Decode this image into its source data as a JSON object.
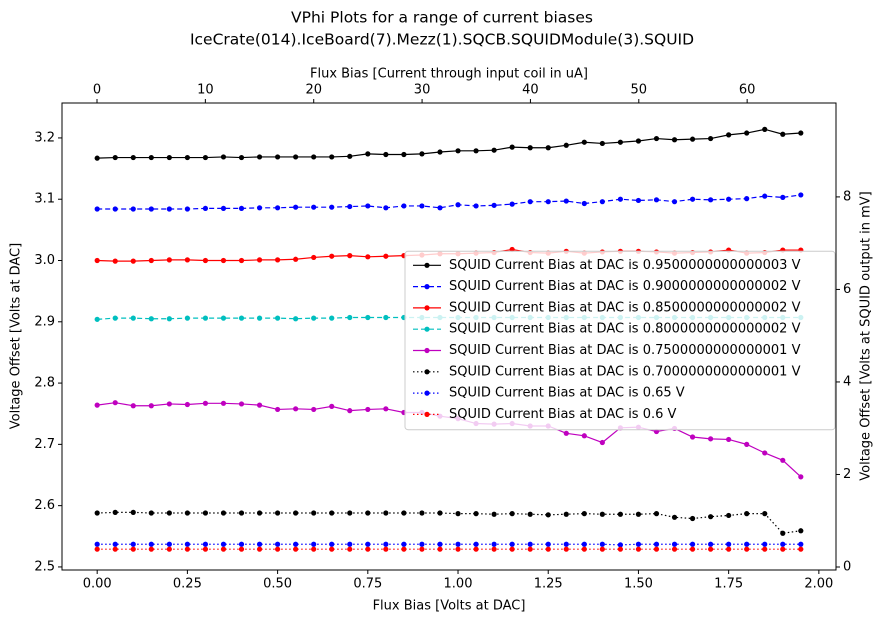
{
  "chart_data": {
    "type": "line",
    "title": "VPhi Plots for a range of current biases",
    "subtitle": "IceCrate(014).IceBoard(7).Mezz(1).SQCB.SQUIDModule(3).SQUID",
    "xlabel": "Flux Bias [Volts at DAC]",
    "ylabel": "Voltage Offset [Volts at DAC]",
    "x2label": "Flux Bias [Current through input coil in uA]",
    "y2label": "Voltage Offset [Volts at SQUID output in mV]",
    "x": [
      0,
      0.05,
      0.1,
      0.15,
      0.2,
      0.25,
      0.3,
      0.35,
      0.4,
      0.45,
      0.5,
      0.55,
      0.6,
      0.65,
      0.7,
      0.75,
      0.8,
      0.85,
      0.9,
      0.95,
      1.0,
      1.05,
      1.1,
      1.15,
      1.2,
      1.25,
      1.3,
      1.35,
      1.4,
      1.45,
      1.5,
      1.55,
      1.6,
      1.65,
      1.7,
      1.75,
      1.8,
      1.85,
      1.9,
      1.95
    ],
    "xlim": [
      -0.0975,
      2.0475
    ],
    "xticks": [
      {
        "value": 0,
        "label": "0.00"
      },
      {
        "value": 0.25,
        "label": "0.25"
      },
      {
        "value": 0.5,
        "label": "0.50"
      },
      {
        "value": 0.75,
        "label": "0.75"
      },
      {
        "value": 1,
        "label": "1.00"
      },
      {
        "value": 1.25,
        "label": "1.25"
      },
      {
        "value": 1.5,
        "label": "1.50"
      },
      {
        "value": 1.75,
        "label": "1.75"
      },
      {
        "value": 2,
        "label": "2.00"
      }
    ],
    "ylim": [
      2.495,
      3.257
    ],
    "yticks": [
      {
        "value": 2.5,
        "label": "2.5"
      },
      2.6,
      2.7,
      2.8,
      2.9,
      {
        "value": 3,
        "label": "3.0"
      },
      3.1,
      3.2
    ],
    "x2lim": [
      -3.23,
      68.2
    ],
    "x2ticks": [
      0,
      10,
      20,
      30,
      40,
      50,
      60
    ],
    "y2lim": [
      -0.065,
      10.03
    ],
    "y2ticks": [
      0,
      2,
      4,
      6,
      8
    ],
    "legend": "right",
    "series": [
      {
        "name": "SQUID Current Bias at DAC is 0.9500000000000003 V",
        "color": "#000000",
        "linestyle": "solid",
        "values": [
          3.167,
          3.168,
          3.168,
          3.168,
          3.168,
          3.168,
          3.168,
          3.169,
          3.168,
          3.169,
          3.169,
          3.169,
          3.169,
          3.169,
          3.17,
          3.174,
          3.173,
          3.173,
          3.174,
          3.177,
          3.179,
          3.179,
          3.18,
          3.185,
          3.184,
          3.184,
          3.188,
          3.193,
          3.191,
          3.193,
          3.195,
          3.199,
          3.197,
          3.198,
          3.199,
          3.205,
          3.208,
          3.214,
          3.206,
          3.208
        ]
      },
      {
        "name": "SQUID Current Bias at DAC is 0.9000000000000002 V",
        "color": "#0000ff",
        "linestyle": "dashed",
        "values": [
          3.084,
          3.084,
          3.084,
          3.084,
          3.084,
          3.084,
          3.085,
          3.085,
          3.085,
          3.086,
          3.086,
          3.087,
          3.087,
          3.087,
          3.088,
          3.089,
          3.086,
          3.089,
          3.089,
          3.086,
          3.091,
          3.089,
          3.09,
          3.092,
          3.096,
          3.096,
          3.097,
          3.093,
          3.096,
          3.1,
          3.098,
          3.099,
          3.096,
          3.1,
          3.099,
          3.1,
          3.101,
          3.105,
          3.103,
          3.107
        ]
      },
      {
        "name": "SQUID Current Bias at DAC is 0.8500000000000002 V",
        "color": "#ff0000",
        "linestyle": "solid",
        "values": [
          3.0,
          2.999,
          2.999,
          3.0,
          3.001,
          3.001,
          3.0,
          3.0,
          3.0,
          3.001,
          3.001,
          3.002,
          3.005,
          3.007,
          3.008,
          3.006,
          3.007,
          3.008,
          3.009,
          3.011,
          3.011,
          3.012,
          3.013,
          3.018,
          3.013,
          3.012,
          3.015,
          3.012,
          3.014,
          3.015,
          3.015,
          3.014,
          3.012,
          3.013,
          3.014,
          3.017,
          3.012,
          3.013,
          3.017,
          3.017
        ]
      },
      {
        "name": "SQUID Current Bias at DAC is 0.8000000000000002 V",
        "color": "#00bfbf",
        "linestyle": "dashed",
        "values": [
          2.904,
          2.906,
          2.906,
          2.905,
          2.905,
          2.906,
          2.906,
          2.906,
          2.906,
          2.906,
          2.906,
          2.905,
          2.906,
          2.906,
          2.907,
          2.907,
          2.907,
          2.907,
          2.907,
          2.907,
          2.907,
          2.907,
          2.907,
          2.907,
          2.907,
          2.907,
          2.907,
          2.907,
          2.907,
          2.907,
          2.907,
          2.907,
          2.907,
          2.907,
          2.907,
          2.907,
          2.907,
          2.907,
          2.907,
          2.907
        ]
      },
      {
        "name": "SQUID Current Bias at DAC is 0.7500000000000001 V",
        "color": "#bf00bf",
        "linestyle": "solid",
        "values": [
          2.764,
          2.768,
          2.763,
          2.763,
          2.766,
          2.765,
          2.767,
          2.767,
          2.766,
          2.764,
          2.757,
          2.758,
          2.757,
          2.762,
          2.755,
          2.757,
          2.758,
          2.752,
          2.752,
          2.746,
          2.742,
          2.734,
          2.733,
          2.734,
          2.73,
          2.73,
          2.718,
          2.714,
          2.703,
          2.727,
          2.728,
          2.721,
          2.726,
          2.712,
          2.709,
          2.708,
          2.7,
          2.686,
          2.674,
          2.647
        ]
      },
      {
        "name": "SQUID Current Bias at DAC is 0.7000000000000001 V",
        "color": "#000000",
        "linestyle": "dotted",
        "values": [
          2.588,
          2.589,
          2.589,
          2.588,
          2.588,
          2.588,
          2.588,
          2.588,
          2.588,
          2.588,
          2.588,
          2.588,
          2.588,
          2.588,
          2.588,
          2.588,
          2.588,
          2.588,
          2.588,
          2.588,
          2.587,
          2.587,
          2.586,
          2.587,
          2.586,
          2.585,
          2.586,
          2.587,
          2.586,
          2.586,
          2.586,
          2.587,
          2.581,
          2.579,
          2.582,
          2.584,
          2.587,
          2.587,
          2.555,
          2.559
        ]
      },
      {
        "name": "SQUID Current Bias at DAC is 0.65 V",
        "color": "#0000ff",
        "linestyle": "dotted",
        "values": [
          2.537,
          2.537,
          2.537,
          2.537,
          2.537,
          2.537,
          2.537,
          2.537,
          2.537,
          2.537,
          2.537,
          2.537,
          2.537,
          2.537,
          2.537,
          2.537,
          2.537,
          2.537,
          2.537,
          2.537,
          2.537,
          2.537,
          2.537,
          2.537,
          2.537,
          2.537,
          2.537,
          2.537,
          2.537,
          2.536,
          2.537,
          2.537,
          2.537,
          2.537,
          2.537,
          2.537,
          2.537,
          2.537,
          2.537,
          2.537
        ]
      },
      {
        "name": "SQUID Current Bias at DAC is 0.6 V",
        "color": "#ff0000",
        "linestyle": "dotted",
        "values": [
          2.529,
          2.529,
          2.529,
          2.529,
          2.529,
          2.529,
          2.529,
          2.529,
          2.529,
          2.529,
          2.529,
          2.529,
          2.529,
          2.529,
          2.529,
          2.529,
          2.529,
          2.529,
          2.529,
          2.529,
          2.529,
          2.529,
          2.529,
          2.529,
          2.529,
          2.529,
          2.529,
          2.529,
          2.529,
          2.529,
          2.529,
          2.529,
          2.529,
          2.529,
          2.529,
          2.529,
          2.529,
          2.529,
          2.529,
          2.529
        ]
      }
    ]
  }
}
